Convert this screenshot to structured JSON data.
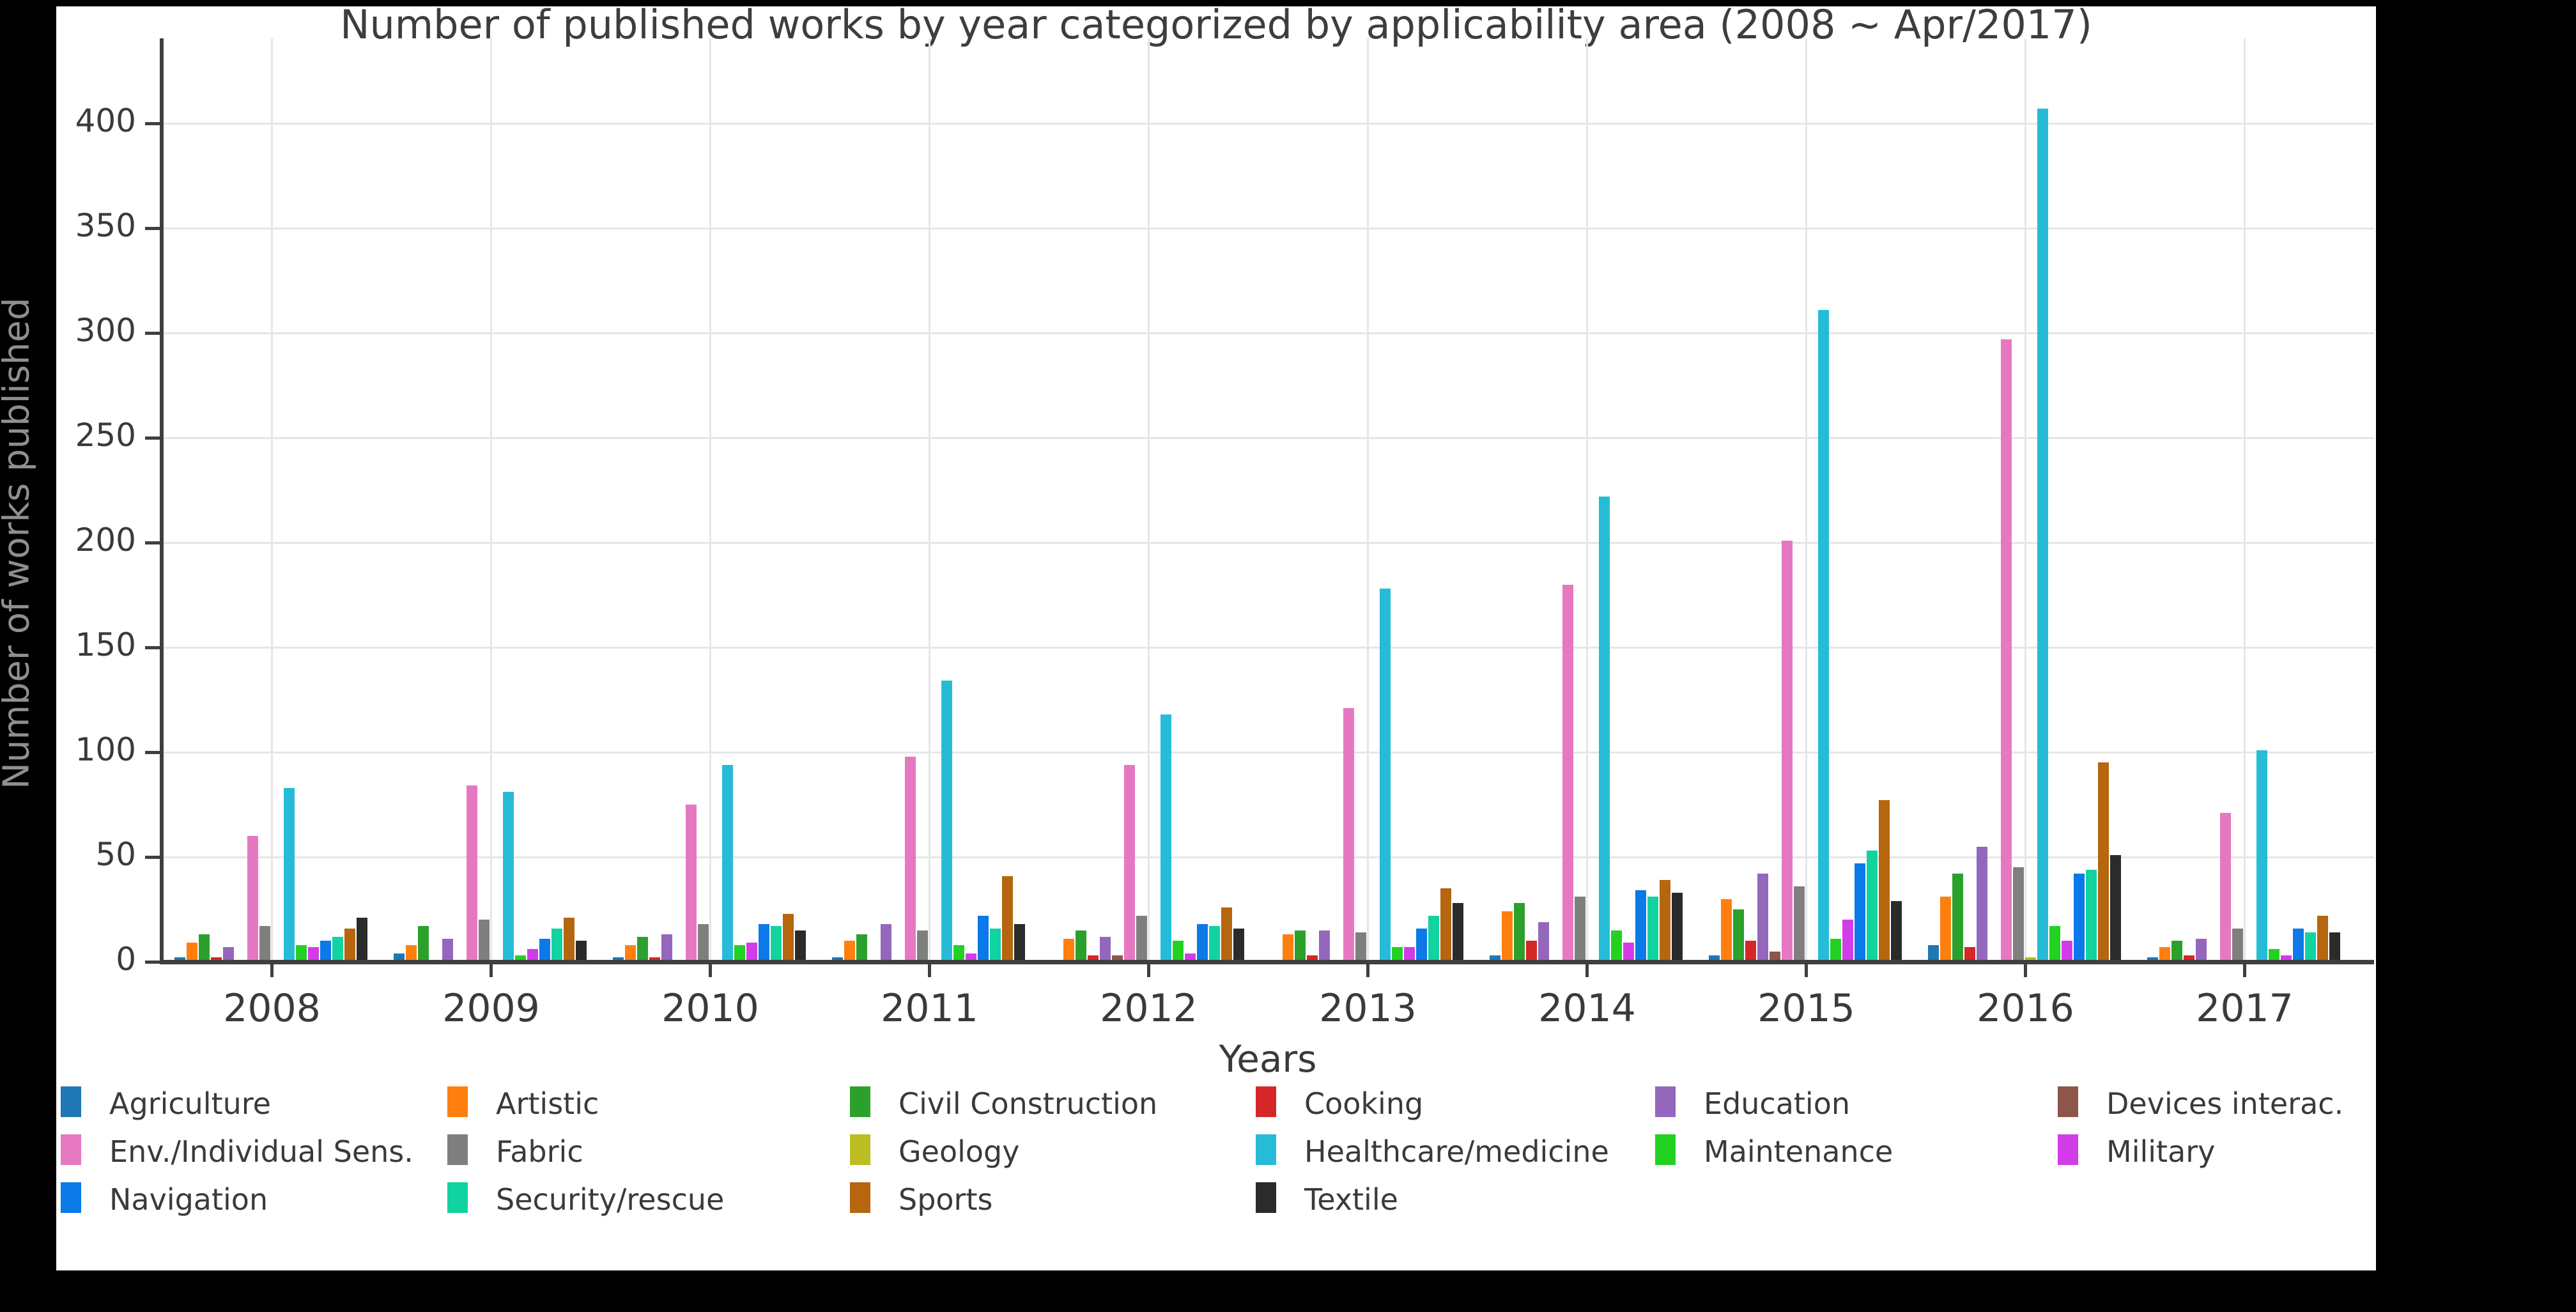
{
  "title": "Number of published works by year categorized by applicability area (2008 ~ Apr/2017)",
  "xlabel": "Years",
  "ylabel": "Number of works published",
  "chart_data": {
    "type": "bar",
    "title": "Number of published works by year categorized by applicability area (2008 ~ Apr/2017)",
    "xlabel": "Years",
    "ylabel": "Number of works published",
    "categories": [
      "2008",
      "2009",
      "2010",
      "2011",
      "2012",
      "2013",
      "2014",
      "2015",
      "2016",
      "2017"
    ],
    "ylim": [
      0,
      430
    ],
    "yticks": [
      0,
      50,
      100,
      150,
      200,
      250,
      300,
      350,
      400
    ],
    "grid": true,
    "legend_position": "bottom",
    "series": [
      {
        "name": "Agriculture",
        "color": "#1f77b4",
        "values": [
          2,
          4,
          2,
          2,
          1,
          1,
          3,
          3,
          8,
          2
        ]
      },
      {
        "name": "Artistic",
        "color": "#ff7f0e",
        "values": [
          9,
          8,
          8,
          10,
          11,
          13,
          24,
          30,
          31,
          7
        ]
      },
      {
        "name": "Civil Construction",
        "color": "#2ca02c",
        "values": [
          13,
          17,
          12,
          13,
          15,
          15,
          28,
          25,
          42,
          10
        ]
      },
      {
        "name": "Cooking",
        "color": "#d62728",
        "values": [
          2,
          0,
          2,
          1,
          3,
          3,
          10,
          10,
          7,
          3
        ]
      },
      {
        "name": "Education",
        "color": "#9467bd",
        "values": [
          7,
          11,
          13,
          18,
          12,
          15,
          19,
          42,
          55,
          11
        ]
      },
      {
        "name": "Devices interac.",
        "color": "#8c564b",
        "values": [
          0,
          0,
          0,
          0,
          3,
          0,
          0,
          5,
          0,
          0
        ]
      },
      {
        "name": "Env./Individual Sens.",
        "color": "#e678c2",
        "values": [
          60,
          84,
          75,
          98,
          94,
          121,
          180,
          201,
          297,
          71
        ]
      },
      {
        "name": "Fabric",
        "color": "#7f7f7f",
        "values": [
          17,
          20,
          18,
          15,
          22,
          14,
          31,
          36,
          45,
          16
        ]
      },
      {
        "name": "Geology",
        "color": "#bcbd22",
        "values": [
          0,
          0,
          0,
          0,
          0,
          1,
          0,
          0,
          2,
          0
        ]
      },
      {
        "name": "Healthcare/medicine",
        "color": "#26bcd7",
        "values": [
          83,
          81,
          94,
          134,
          118,
          178,
          222,
          311,
          407,
          101
        ]
      },
      {
        "name": "Maintenance",
        "color": "#23d123",
        "values": [
          8,
          3,
          8,
          8,
          10,
          7,
          15,
          11,
          17,
          6
        ]
      },
      {
        "name": "Military",
        "color": "#d23ce8",
        "values": [
          7,
          6,
          9,
          4,
          4,
          7,
          9,
          20,
          10,
          3
        ]
      },
      {
        "name": "Navigation",
        "color": "#0b79e8",
        "values": [
          10,
          11,
          18,
          22,
          18,
          16,
          34,
          47,
          42,
          16
        ]
      },
      {
        "name": "Security/rescue",
        "color": "#10d3a0",
        "values": [
          12,
          16,
          17,
          16,
          17,
          22,
          31,
          53,
          44,
          14
        ]
      },
      {
        "name": "Sports",
        "color": "#b5660e",
        "values": [
          16,
          21,
          23,
          41,
          26,
          35,
          39,
          77,
          95,
          22
        ]
      },
      {
        "name": "Textile",
        "color": "#2b2b2b",
        "values": [
          21,
          10,
          15,
          18,
          16,
          28,
          33,
          29,
          51,
          14
        ]
      }
    ]
  },
  "legend": {
    "rows": [
      [
        "Agriculture",
        "Artistic",
        "Civil Construction",
        "Cooking",
        "Education",
        "Devices interac."
      ],
      [
        "Env./Individual Sens.",
        "Fabric",
        "Geology",
        "Healthcare/medicine",
        "Maintenance",
        "Military"
      ],
      [
        "Navigation",
        "Security/rescue",
        "Sports",
        "Textile"
      ]
    ]
  }
}
